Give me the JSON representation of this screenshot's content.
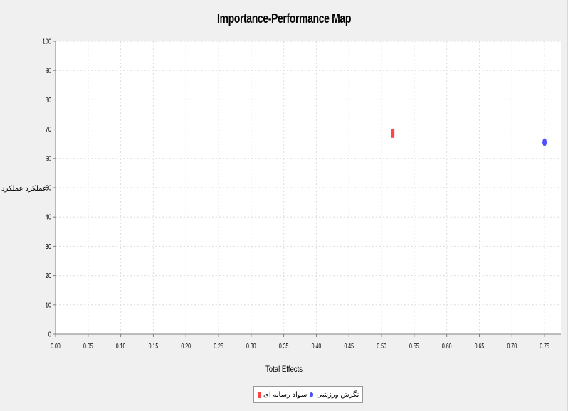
{
  "chart_data": {
    "type": "scatter",
    "title": "Importance-Performance Map",
    "xlabel": "Total Effects",
    "ylabel": "عملکرد عملکرد",
    "xlim": [
      0.0,
      0.775
    ],
    "ylim": [
      0,
      100
    ],
    "x_ticks": [
      "0.00",
      "0.05",
      "0.10",
      "0.15",
      "0.20",
      "0.25",
      "0.30",
      "0.35",
      "0.40",
      "0.45",
      "0.50",
      "0.55",
      "0.60",
      "0.65",
      "0.70",
      "0.75"
    ],
    "y_ticks": [
      "0",
      "10",
      "20",
      "30",
      "40",
      "50",
      "60",
      "70",
      "80",
      "90",
      "100"
    ],
    "grid": true,
    "legend_position": "bottom",
    "series": [
      {
        "name": "سواد رسانه ای",
        "color": "#ff4545",
        "marker": "rect",
        "points": [
          {
            "x": 0.517,
            "y": 68.5
          }
        ]
      },
      {
        "name": "نگرش ورزشی",
        "color": "#5050ff",
        "marker": "ellipse",
        "points": [
          {
            "x": 0.75,
            "y": 65.5
          }
        ]
      }
    ]
  }
}
